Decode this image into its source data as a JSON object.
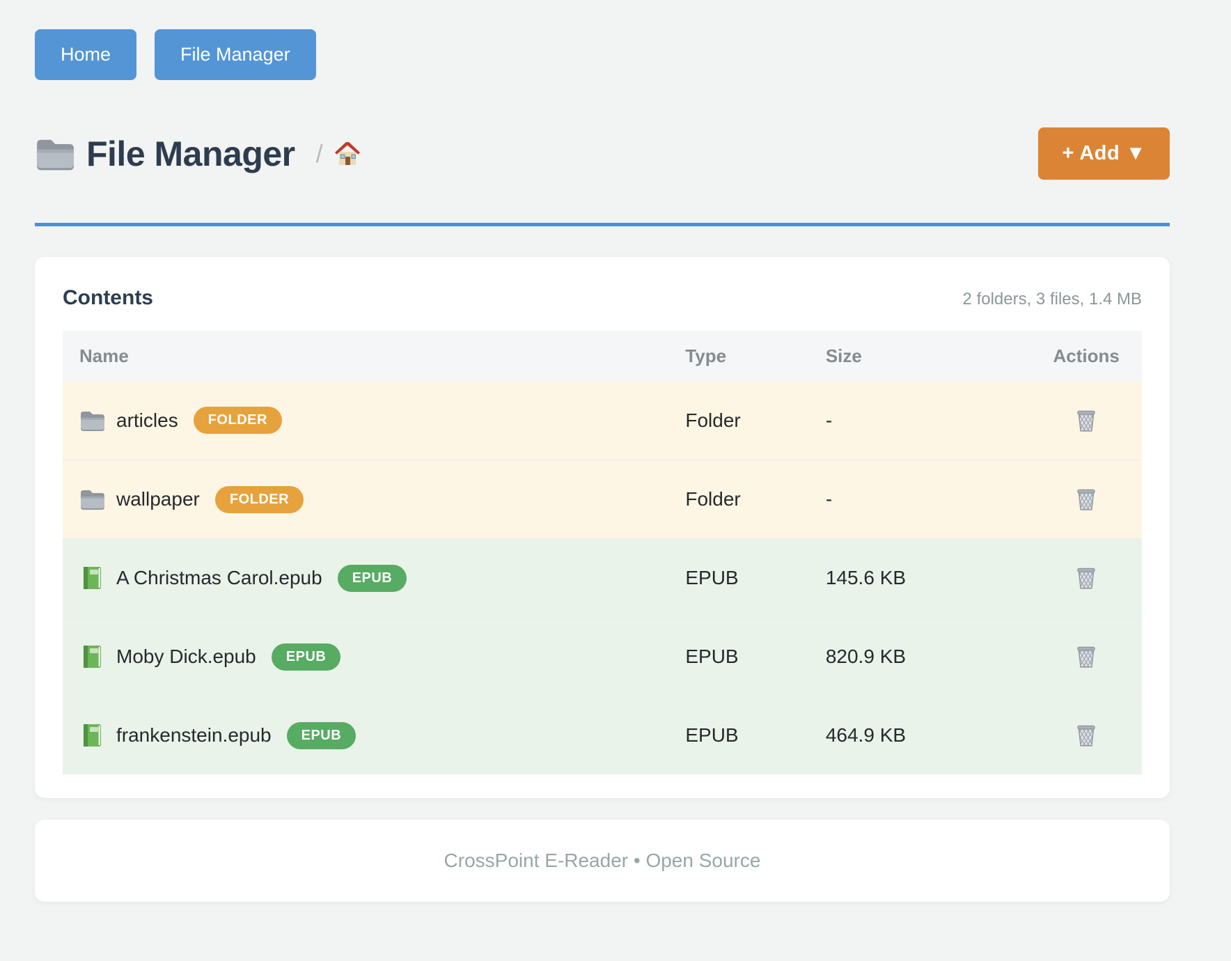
{
  "nav": {
    "buttons": [
      {
        "label": "Home"
      },
      {
        "label": "File Manager"
      }
    ]
  },
  "header": {
    "title_icon": "folder-icon",
    "title": "File Manager",
    "breadcrumb_separator": "/",
    "breadcrumb_home_icon": "home-icon",
    "add_button_label": "+ Add ▼"
  },
  "panel": {
    "heading": "Contents",
    "summary": "2 folders, 3 files, 1.4 MB"
  },
  "table": {
    "columns": [
      "Name",
      "Type",
      "Size",
      "Actions"
    ],
    "action_icon": "trash-icon",
    "rows": [
      {
        "icon": "folder-icon",
        "kind": "folder",
        "name": "articles",
        "badge": "FOLDER",
        "type": "Folder",
        "size": "-"
      },
      {
        "icon": "folder-icon",
        "kind": "folder",
        "name": "wallpaper",
        "badge": "FOLDER",
        "type": "Folder",
        "size": "-"
      },
      {
        "icon": "book-icon",
        "kind": "epub",
        "name": "A Christmas Carol.epub",
        "badge": "EPUB",
        "type": "EPUB",
        "size": "145.6 KB"
      },
      {
        "icon": "book-icon",
        "kind": "epub",
        "name": "Moby Dick.epub",
        "badge": "EPUB",
        "type": "EPUB",
        "size": "820.9 KB"
      },
      {
        "icon": "book-icon",
        "kind": "epub",
        "name": "frankenstein.epub",
        "badge": "EPUB",
        "type": "EPUB",
        "size": "464.9 KB"
      }
    ]
  },
  "footer": {
    "text": "CrossPoint E-Reader • Open Source"
  },
  "colors": {
    "accent_blue": "#5495d6",
    "rule_blue": "#4a90d8",
    "accent_orange": "#dc8435",
    "badge_folder": "#e6a23c",
    "badge_epub": "#57ab63",
    "row_folder_bg": "#fdf6e4",
    "row_epub_bg": "#e9f3ea",
    "title_color": "#2d3c4e"
  }
}
